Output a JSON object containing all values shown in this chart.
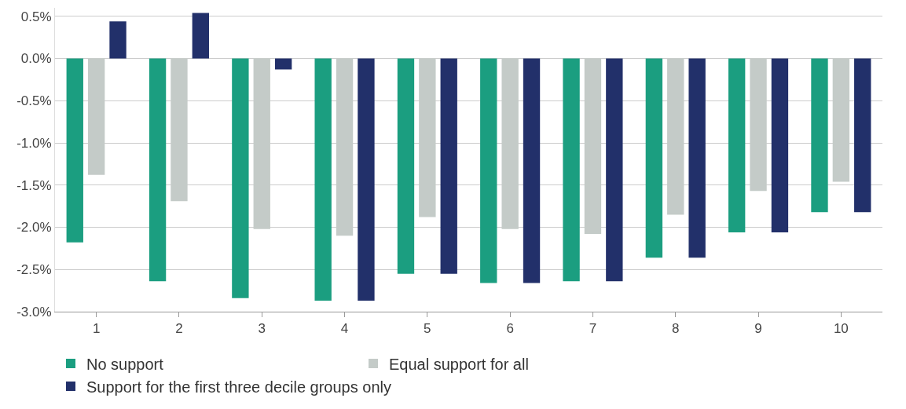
{
  "chart_data": {
    "type": "bar",
    "categories": [
      "1",
      "2",
      "3",
      "4",
      "5",
      "6",
      "7",
      "8",
      "9",
      "10"
    ],
    "series": [
      {
        "name": "No support",
        "color": "#1b9e80",
        "values": [
          -2.18,
          -2.64,
          -2.84,
          -2.87,
          -2.55,
          -2.66,
          -2.64,
          -2.36,
          -2.06,
          -1.82
        ]
      },
      {
        "name": "Equal support for all",
        "color": "#c4cbc8",
        "values": [
          -1.38,
          -1.69,
          -2.02,
          -2.1,
          -1.88,
          -2.02,
          -2.08,
          -1.85,
          -1.57,
          -1.46
        ]
      },
      {
        "name": "Support for the first three decile groups only",
        "color": "#22306a",
        "values": [
          0.44,
          0.54,
          -0.13,
          -2.87,
          -2.55,
          -2.66,
          -2.64,
          -2.36,
          -2.06,
          -1.82
        ]
      }
    ],
    "ylim": [
      -3.0,
      0.6
    ],
    "yticks": [
      {
        "value": -3.0,
        "label": "-3.0%"
      },
      {
        "value": -2.5,
        "label": "-2.5%"
      },
      {
        "value": -2.0,
        "label": "-2.0%"
      },
      {
        "value": -1.5,
        "label": "-1.5%"
      },
      {
        "value": -1.0,
        "label": "-1.0%"
      },
      {
        "value": -0.5,
        "label": "-0.5%"
      },
      {
        "value": 0.0,
        "label": "0.0%"
      },
      {
        "value": 0.5,
        "label": "0.5%"
      }
    ],
    "grid": "y",
    "legend": "bottom left"
  }
}
